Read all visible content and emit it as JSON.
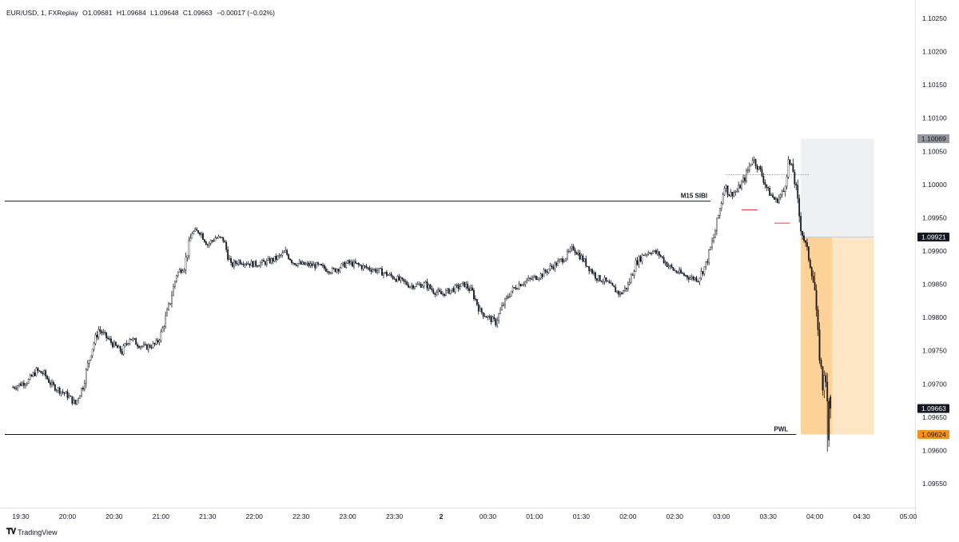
{
  "legend": {
    "symbol": "EUR/USD, 1, FXReplay",
    "open": "O1.09681",
    "high": "H1.09684",
    "low": "L1.09648",
    "close": "C1.09663",
    "change": "−0.00017 (−0.02%)"
  },
  "branding": {
    "name": "TradingView",
    "icon": "tradingview-logo-icon"
  },
  "colors": {
    "candle": "#131722",
    "grid_axis": "#e0e3eb",
    "sl_zone": "#eff0f2",
    "tp_zone": "#fde6c3",
    "tp_zone_active": "#fcd299",
    "pwl_badge": "#f7931a",
    "price_badge": "#131722",
    "sl_badge": "#9598a1",
    "marker_red": "#f23645"
  },
  "chart_data": {
    "type": "candlestick",
    "title": "EUR/USD, 1, FXReplay",
    "ylim": [
      1.0951,
      1.1031
    ],
    "y_ticks": [
      "1.10250",
      "1.10200",
      "1.10150",
      "1.10100",
      "1.10050",
      "1.10000",
      "1.09950",
      "1.09900",
      "1.09850",
      "1.09800",
      "1.09750",
      "1.09700",
      "1.09650",
      "1.09600",
      "1.09550"
    ],
    "x_ticks": [
      "19:30",
      "20:00",
      "20:30",
      "21:00",
      "21:30",
      "22:00",
      "22:30",
      "23:00",
      "23:30",
      "2",
      "00:30",
      "01:00",
      "01:30",
      "02:00",
      "02:30",
      "03:00",
      "03:30",
      "04:00",
      "04:30",
      "05:00"
    ],
    "bold_x_ticks": [
      "2"
    ],
    "close_path": [
      [
        "19:25",
        1.09695
      ],
      [
        "19:35",
        1.09705
      ],
      [
        "19:40",
        1.0972
      ],
      [
        "19:45",
        1.09715
      ],
      [
        "19:50",
        1.09698
      ],
      [
        "20:00",
        1.09683
      ],
      [
        "20:05",
        1.0967
      ],
      [
        "20:10",
        1.09698
      ],
      [
        "20:15",
        1.09748
      ],
      [
        "20:20",
        1.09782
      ],
      [
        "20:30",
        1.09758
      ],
      [
        "20:35",
        1.09748
      ],
      [
        "20:40",
        1.0977
      ],
      [
        "20:45",
        1.0976
      ],
      [
        "20:50",
        1.09755
      ],
      [
        "20:57",
        1.0976
      ],
      [
        "21:00",
        1.09775
      ],
      [
        "21:05",
        1.09815
      ],
      [
        "21:10",
        1.09865
      ],
      [
        "21:15",
        1.09878
      ],
      [
        "21:20",
        1.09928
      ],
      [
        "21:25",
        1.0993
      ],
      [
        "21:30",
        1.0991
      ],
      [
        "21:35",
        1.0992
      ],
      [
        "21:40",
        1.09918
      ],
      [
        "21:45",
        1.09878
      ],
      [
        "21:50",
        1.09885
      ],
      [
        "22:00",
        1.0988
      ],
      [
        "22:05",
        1.09882
      ],
      [
        "22:10",
        1.09885
      ],
      [
        "22:15",
        1.0989
      ],
      [
        "22:20",
        1.09898
      ],
      [
        "22:25",
        1.09883
      ],
      [
        "22:30",
        1.0988
      ],
      [
        "22:40",
        1.09878
      ],
      [
        "22:50",
        1.0987
      ],
      [
        "23:00",
        1.09882
      ],
      [
        "23:05",
        1.0988
      ],
      [
        "23:10",
        1.09876
      ],
      [
        "23:20",
        1.0987
      ],
      [
        "23:30",
        1.0986
      ],
      [
        "23:40",
        1.09848
      ],
      [
        "23:50",
        1.0985
      ],
      [
        "23:55",
        1.0984
      ],
      [
        "00:00",
        1.09835
      ],
      [
        "00:05",
        1.0984
      ],
      [
        "00:10",
        1.09845
      ],
      [
        "00:15",
        1.0985
      ],
      [
        "00:20",
        1.09838
      ],
      [
        "00:25",
        1.0981
      ],
      [
        "00:30",
        1.098
      ],
      [
        "00:35",
        1.09793
      ],
      [
        "00:40",
        1.0982
      ],
      [
        "00:45",
        1.0984
      ],
      [
        "00:50",
        1.0985
      ],
      [
        "00:55",
        1.09855
      ],
      [
        "01:00",
        1.0986
      ],
      [
        "01:05",
        1.09865
      ],
      [
        "01:10",
        1.09875
      ],
      [
        "01:15",
        1.09882
      ],
      [
        "01:20",
        1.09892
      ],
      [
        "01:25",
        1.09905
      ],
      [
        "01:30",
        1.0989
      ],
      [
        "01:35",
        1.09875
      ],
      [
        "01:40",
        1.0986
      ],
      [
        "01:45",
        1.09855
      ],
      [
        "01:50",
        1.09845
      ],
      [
        "01:55",
        1.09835
      ],
      [
        "02:00",
        1.09848
      ],
      [
        "02:05",
        1.09882
      ],
      [
        "02:10",
        1.09895
      ],
      [
        "02:15",
        1.099
      ],
      [
        "02:20",
        1.09895
      ],
      [
        "02:25",
        1.0988
      ],
      [
        "02:30",
        1.0987
      ],
      [
        "02:35",
        1.09865
      ],
      [
        "02:40",
        1.0986
      ],
      [
        "02:45",
        1.09858
      ],
      [
        "02:50",
        1.0988
      ],
      [
        "02:55",
        1.0992
      ],
      [
        "03:00",
        1.09975
      ],
      [
        "03:02",
        1.1
      ],
      [
        "03:05",
        1.09985
      ],
      [
        "03:10",
        1.0999
      ],
      [
        "03:15",
        1.1001
      ],
      [
        "03:20",
        1.1004
      ],
      [
        "03:25",
        1.1002
      ],
      [
        "03:30",
        1.0999
      ],
      [
        "03:35",
        1.09975
      ],
      [
        "03:40",
        1.0999
      ],
      [
        "03:43",
        1.10035
      ],
      [
        "03:46",
        1.1002
      ],
      [
        "03:48",
        1.0999
      ],
      [
        "03:51",
        1.09935
      ],
      [
        "03:55",
        1.099
      ],
      [
        "03:58",
        1.0987
      ],
      [
        "04:00",
        1.0984
      ],
      [
        "04:01",
        1.098
      ],
      [
        "04:02",
        1.0977
      ],
      [
        "04:04",
        1.0972
      ],
      [
        "04:05",
        1.09695
      ],
      [
        "04:06",
        1.0972
      ],
      [
        "04:08",
        1.0967
      ],
      [
        "04:09",
        1.0963
      ],
      [
        "04:10",
        1.09663
      ]
    ],
    "last_candle": {
      "open": 1.09681,
      "high": 1.09684,
      "low": 1.09648,
      "close": 1.09663
    },
    "spike_low": 1.09598,
    "levels": [
      {
        "name": "M15 SIBI",
        "price": 1.09975,
        "from": "19:20",
        "to": "02:53"
      },
      {
        "name": "PWL",
        "price": 1.09624,
        "from": "19:20",
        "to": "03:48"
      }
    ],
    "position_tool": {
      "entry": 1.09921,
      "stop": 1.10069,
      "target": 1.09624,
      "from": "03:51",
      "active_to": "04:11",
      "to": "04:38"
    },
    "price_badges": [
      {
        "label": "1.10069",
        "price": 1.10069,
        "kind": "sl"
      },
      {
        "label": "1.09921",
        "price": 1.09921,
        "kind": "entry"
      },
      {
        "label": "1.09663",
        "price": 1.09663,
        "kind": "last"
      },
      {
        "label": "1.09624",
        "price": 1.09624,
        "kind": "pwl"
      }
    ],
    "annotations": [
      "M15 SIBI",
      "PWL"
    ],
    "grid": false
  }
}
